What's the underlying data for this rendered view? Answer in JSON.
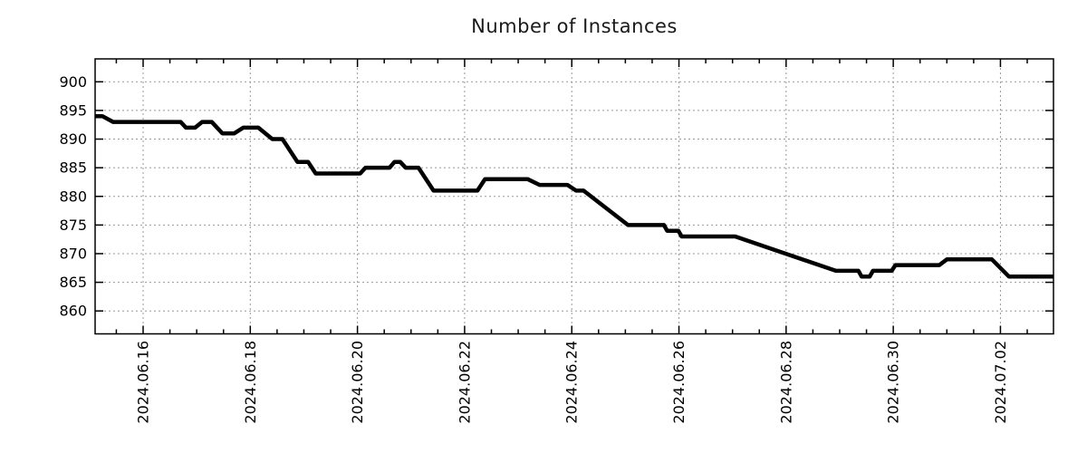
{
  "chart_data": {
    "type": "line",
    "title": "Number of Instances",
    "legend": "none",
    "background_color": "#ffffff",
    "border_color": "#000000",
    "grid": {
      "show": true,
      "color": "#999999",
      "style": "dotted"
    },
    "x_axis": {
      "unit": "days since 2024-06-15 00:00",
      "range": [
        0.104,
        17.99
      ],
      "minor_tick_interval": 0.5,
      "major_ticks": [
        {
          "t": 1,
          "label": "2024.06.16"
        },
        {
          "t": 3,
          "label": "2024.06.18"
        },
        {
          "t": 5,
          "label": "2024.06.20"
        },
        {
          "t": 7,
          "label": "2024.06.22"
        },
        {
          "t": 9,
          "label": "2024.06.24"
        },
        {
          "t": 11,
          "label": "2024.06.26"
        },
        {
          "t": 13,
          "label": "2024.06.28"
        },
        {
          "t": 15,
          "label": "2024.06.30"
        },
        {
          "t": 17,
          "label": "2024.07.02"
        }
      ]
    },
    "y_axis": {
      "range": [
        856,
        904
      ],
      "ticks": [
        860,
        865,
        870,
        875,
        880,
        885,
        890,
        895,
        900
      ]
    },
    "series": [
      {
        "name": "instances",
        "color": "#000000",
        "line_width": 4.5,
        "points": [
          [
            0.1,
            894
          ],
          [
            0.24,
            894
          ],
          [
            0.44,
            893
          ],
          [
            1.7,
            893
          ],
          [
            1.8,
            892
          ],
          [
            1.97,
            892
          ],
          [
            2.1,
            893
          ],
          [
            2.28,
            893
          ],
          [
            2.48,
            891
          ],
          [
            2.7,
            891
          ],
          [
            2.87,
            892
          ],
          [
            3.15,
            892
          ],
          [
            3.41,
            890
          ],
          [
            3.6,
            890
          ],
          [
            3.88,
            886
          ],
          [
            4.08,
            886
          ],
          [
            4.22,
            884
          ],
          [
            5.05,
            884
          ],
          [
            5.15,
            885
          ],
          [
            5.6,
            885
          ],
          [
            5.69,
            886
          ],
          [
            5.8,
            886
          ],
          [
            5.9,
            885
          ],
          [
            6.14,
            885
          ],
          [
            6.42,
            881
          ],
          [
            7.24,
            881
          ],
          [
            7.38,
            883
          ],
          [
            8.18,
            883
          ],
          [
            8.4,
            882
          ],
          [
            8.92,
            882
          ],
          [
            9.08,
            881
          ],
          [
            9.22,
            881
          ],
          [
            10.05,
            875
          ],
          [
            10.72,
            875
          ],
          [
            10.78,
            874
          ],
          [
            10.99,
            874
          ],
          [
            11.05,
            873
          ],
          [
            12.05,
            873
          ],
          [
            13.93,
            867
          ],
          [
            14.35,
            867
          ],
          [
            14.41,
            866
          ],
          [
            14.56,
            866
          ],
          [
            14.62,
            867
          ],
          [
            14.97,
            867
          ],
          [
            15.04,
            868
          ],
          [
            15.86,
            868
          ],
          [
            16.0,
            869
          ],
          [
            16.84,
            869
          ],
          [
            17.16,
            866
          ],
          [
            17.99,
            866
          ]
        ]
      }
    ]
  }
}
